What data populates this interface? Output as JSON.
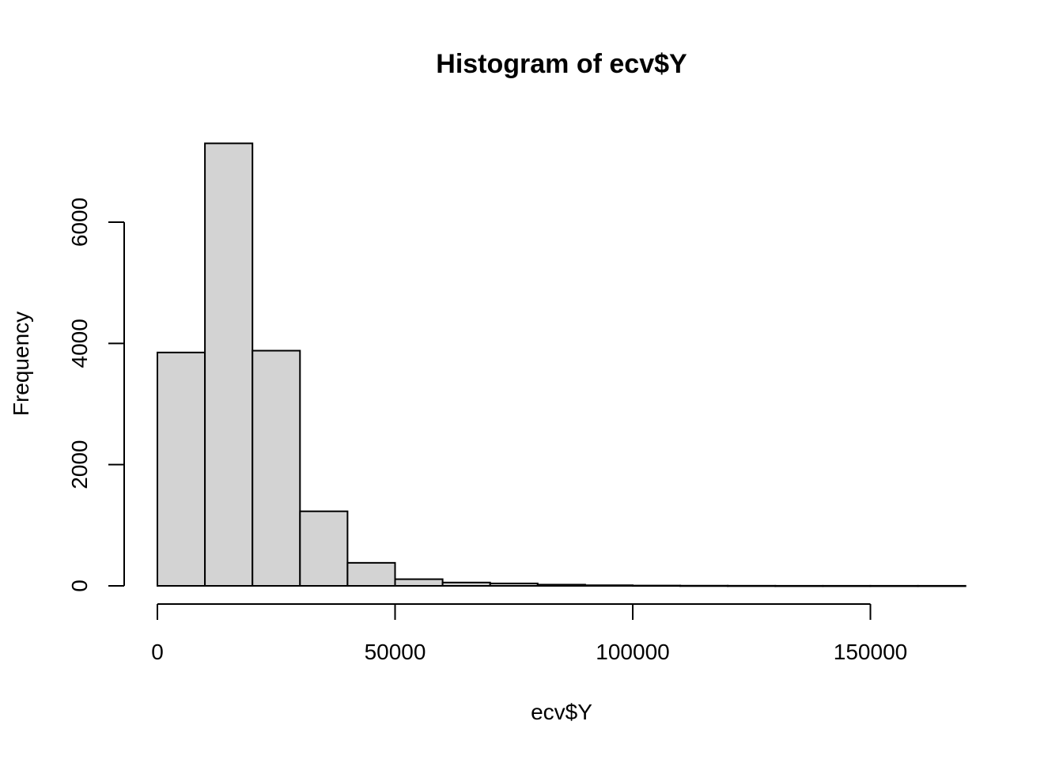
{
  "chart_data": {
    "type": "bar",
    "title": "Histogram of ecv$Y",
    "xlabel": "ecv$Y",
    "ylabel": "Frequency",
    "bin_edges": [
      0,
      10000,
      20000,
      30000,
      40000,
      50000,
      60000,
      70000,
      80000,
      90000,
      100000,
      110000,
      120000,
      130000,
      140000,
      150000,
      160000,
      170000
    ],
    "values": [
      3850,
      7300,
      3880,
      1230,
      380,
      110,
      55,
      40,
      20,
      10,
      5,
      3,
      2,
      1,
      1,
      1,
      1
    ],
    "xlim": [
      0,
      170000
    ],
    "ylim": [
      0,
      7300
    ],
    "x_ticks": [
      0,
      50000,
      100000,
      150000
    ],
    "x_tick_labels": [
      "0",
      "50000",
      "100000",
      "150000"
    ],
    "y_ticks": [
      0,
      2000,
      4000,
      6000
    ],
    "y_tick_labels": [
      "0",
      "2000",
      "4000",
      "6000"
    ],
    "grid": false,
    "bar_fill": "#d3d3d3",
    "bar_stroke": "#000000"
  }
}
